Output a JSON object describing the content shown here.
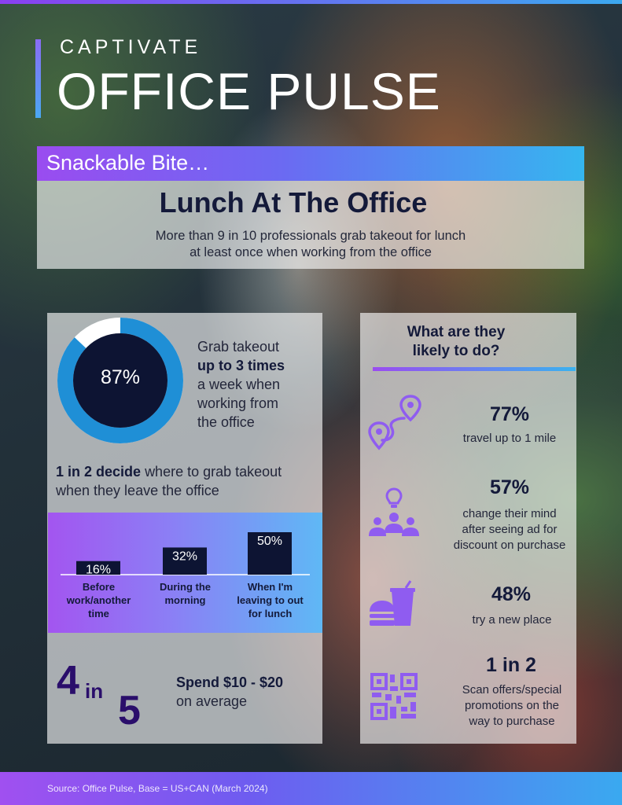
{
  "brand": {
    "name": "CAPTIVATE",
    "product": "OFFICE PULSE"
  },
  "banner": "Snackable Bite…",
  "headline": {
    "title": "Lunch At The Office",
    "sub_line1": "More than 9 in 10 professionals grab takeout for lunch",
    "sub_line2": "at least once when working from the office"
  },
  "donut": {
    "value_label": "87%",
    "value": 87,
    "color": "#1f8fd6",
    "remainder_color": "#ffffff",
    "center_color": "#0d1433"
  },
  "takeout_text": {
    "line1": "Grab takeout",
    "bold": "up to 3 times",
    "line3": "a week when",
    "line4": "working from",
    "line5": "the office"
  },
  "decide": {
    "bold": "1 in 2 decide",
    "rest": "where to grab takeout when they leave the office"
  },
  "chart_data": {
    "type": "bar",
    "categories": [
      "Before work/another time",
      "During the morning",
      "When I'm leaving to out for lunch"
    ],
    "category_lines": [
      [
        "Before",
        "work/another",
        "time"
      ],
      [
        "During the",
        "morning"
      ],
      [
        "When I'm",
        "leaving to out",
        "for lunch"
      ]
    ],
    "values": [
      16,
      32,
      50
    ],
    "value_labels": [
      "16%",
      "32%",
      "50%"
    ],
    "bar_color": "#0d1433",
    "title": "",
    "xlabel": "",
    "ylabel": "",
    "ylim": [
      0,
      50
    ]
  },
  "spend": {
    "big_num_a": "4",
    "big_word": "in",
    "big_num_b": "5",
    "title": "Spend $10 - $20",
    "sub": "on average"
  },
  "right": {
    "title_line1": "What are they",
    "title_line2": "likely to do?",
    "stats": [
      {
        "value": "77%",
        "lines": [
          "travel up to 1 mile"
        ],
        "icon": "route-map-pin-icon"
      },
      {
        "value": "57%",
        "lines": [
          "change their mind",
          "after seeing ad for",
          "discount on purchase"
        ],
        "icon": "group-idea-icon"
      },
      {
        "value": "48%",
        "lines": [
          "try a new place"
        ],
        "icon": "fast-food-icon"
      },
      {
        "value": "1 in 2",
        "lines": [
          "Scan offers/special",
          "promotions on the",
          "way to purchase"
        ],
        "icon": "qr-code-icon"
      }
    ],
    "icon_color": "#8f5cf0"
  },
  "footer": "Source: Office Pulse, Base = US+CAN (March 2024)"
}
